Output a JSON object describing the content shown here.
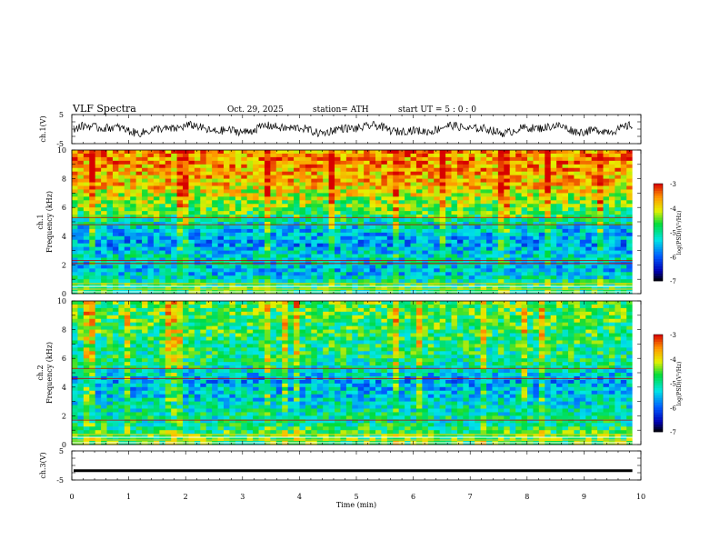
{
  "header": {
    "title": "VLF  Spectra",
    "date": "Oct. 29, 2025",
    "station": "station= ATH",
    "start_ut": "start  UT  =    5  : 0   : 0"
  },
  "chart_data": [
    {
      "type": "line",
      "name": "ch1-waveform",
      "ylabel": "ch.1(V)",
      "ylim": [
        -5,
        5
      ],
      "y_tick_labels": [
        "5",
        "-5"
      ],
      "xlim": [
        0,
        10
      ],
      "trace_amplitude": 1.8,
      "x_end": 9.85
    },
    {
      "type": "heatmap",
      "name": "ch1-spectrogram",
      "ylabel_line1": "ch.1",
      "ylabel_line2": "Frequency  (kHz)",
      "ylim": [
        0,
        10
      ],
      "y_tick_labels": [
        "0",
        "2",
        "4",
        "6",
        "8",
        "10"
      ],
      "xlim": [
        0,
        10
      ],
      "x_end": 9.85,
      "colorbar": {
        "label": "log(PSD)(V²/Hz)",
        "range": [
          -7,
          -3
        ],
        "tick_labels": [
          "-3",
          "-4",
          "-5",
          "-6",
          "-7"
        ]
      },
      "freq_profile_kHz": [
        0.5,
        1.5,
        2.5,
        3.5,
        4.5,
        5.5,
        6.5,
        7.5,
        8.5,
        9.5
      ],
      "mean_log_psd": [
        -4.8,
        -5.5,
        -5.2,
        -5.7,
        -5.4,
        -4.7,
        -4.3,
        -3.9,
        -3.7,
        -3.6
      ],
      "lines_kHz": [
        2.1,
        2.3,
        4.8,
        5.3
      ]
    },
    {
      "type": "heatmap",
      "name": "ch2-spectrogram",
      "ylabel_line1": "ch.2",
      "ylabel_line2": "Frequency  (kHz)",
      "ylim": [
        0,
        10
      ],
      "y_tick_labels": [
        "0",
        "2",
        "4",
        "6",
        "8",
        "10"
      ],
      "xlim": [
        0,
        10
      ],
      "x_end": 9.85,
      "colorbar": {
        "label": "log(PSD)(V²/Hz)",
        "range": [
          -7,
          -3
        ],
        "tick_labels": [
          "-3",
          "-4",
          "-5",
          "-6",
          "-7"
        ]
      },
      "freq_profile_kHz": [
        0.5,
        1.5,
        2.5,
        3.5,
        4.5,
        5.5,
        6.5,
        7.5,
        8.5,
        9.5
      ],
      "mean_log_psd": [
        -4.6,
        -5.0,
        -5.1,
        -5.4,
        -5.6,
        -5.0,
        -4.9,
        -4.8,
        -4.7,
        -4.6
      ],
      "lines_kHz": [
        1.7,
        4.6,
        5.3
      ]
    },
    {
      "type": "line",
      "name": "ch3-waveform",
      "ylabel": "ch.3(V)",
      "ylim": [
        -5,
        5
      ],
      "y_tick_labels": [
        "5",
        "-5"
      ],
      "xlim": [
        0,
        10
      ],
      "trace_level": -1.8,
      "x_end": 9.85,
      "xlabel": "Time  (min)",
      "x_tick_labels": [
        "0",
        "1",
        "2",
        "3",
        "4",
        "5",
        "6",
        "7",
        "8",
        "9",
        "10"
      ]
    }
  ]
}
